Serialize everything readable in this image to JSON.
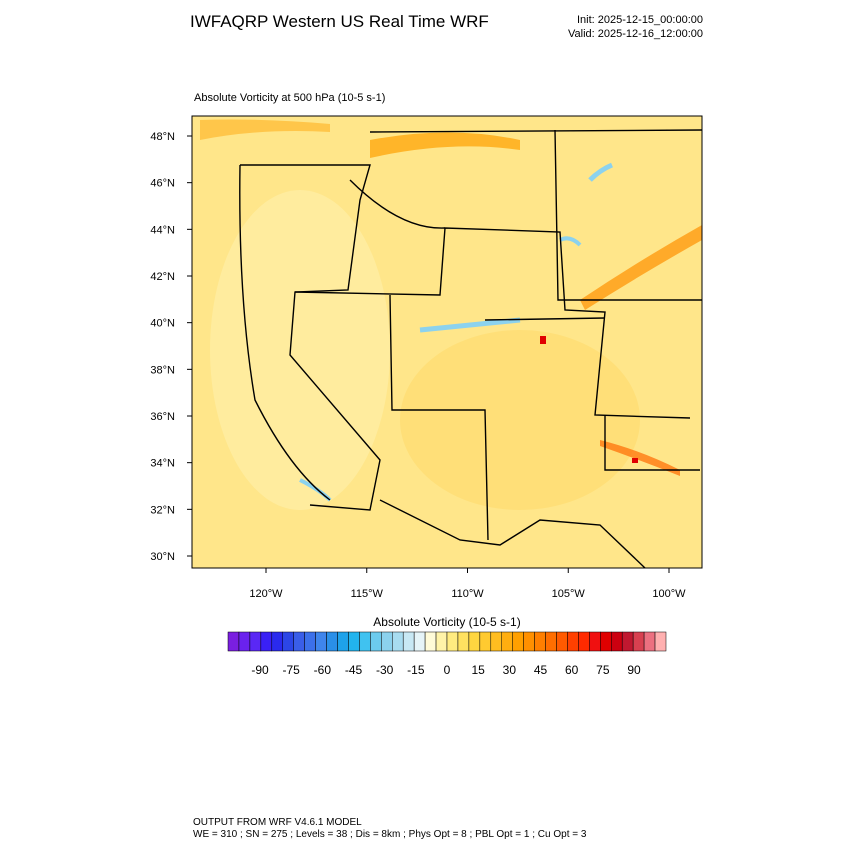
{
  "header": {
    "title": "IWFAQRP Western US Real Time WRF",
    "init": "Init: 2025-12-15_00:00:00",
    "valid": "Valid: 2025-12-16_12:00:00"
  },
  "map": {
    "subtitle": "Absolute Vorticity at 500 hPa   (10-5 s-1)",
    "lat_labels": [
      "48°N",
      "46°N",
      "44°N",
      "42°N",
      "40°N",
      "38°N",
      "36°N",
      "34°N",
      "32°N",
      "30°N"
    ],
    "lon_labels": [
      "120°W",
      "115°W",
      "110°W",
      "105°W",
      "100°W"
    ]
  },
  "colorbar": {
    "title": "Absolute Vorticity  (10-5 s-1)",
    "ticks": [
      -90,
      -75,
      -60,
      -45,
      -30,
      -15,
      0,
      15,
      30,
      45,
      60,
      75,
      90
    ],
    "colors": [
      "#7a1fe0",
      "#6a22ee",
      "#5a28f5",
      "#3a20f5",
      "#2a2aee",
      "#2c46e6",
      "#3a5ee8",
      "#3c70ea",
      "#3f85ec",
      "#2a8fe8",
      "#1ea2ea",
      "#22b4ee",
      "#40c2f0",
      "#6ccbee",
      "#8cd2ee",
      "#a8dcf0",
      "#c8e8f4",
      "#e6f4f8",
      "#fffbd8",
      "#fff3a8",
      "#ffeb80",
      "#ffe160",
      "#ffd640",
      "#ffca30",
      "#ffbd20",
      "#ffae10",
      "#ffa000",
      "#ff9000",
      "#ff7f00",
      "#ff6e00",
      "#ff5a00",
      "#ff4000",
      "#ff2a00",
      "#f01010",
      "#e00000",
      "#cc0010",
      "#c01830",
      "#d84050",
      "#ec7080",
      "#ffb0b0"
    ]
  },
  "footer": {
    "line1": "OUTPUT FROM WRF V4.6.1 MODEL",
    "line2": "WE = 310 ; SN = 275 ; Levels = 38 ; Dis = 8km ; Phys Opt = 8 ; PBL Opt = 1 ; Cu Opt = 3"
  }
}
